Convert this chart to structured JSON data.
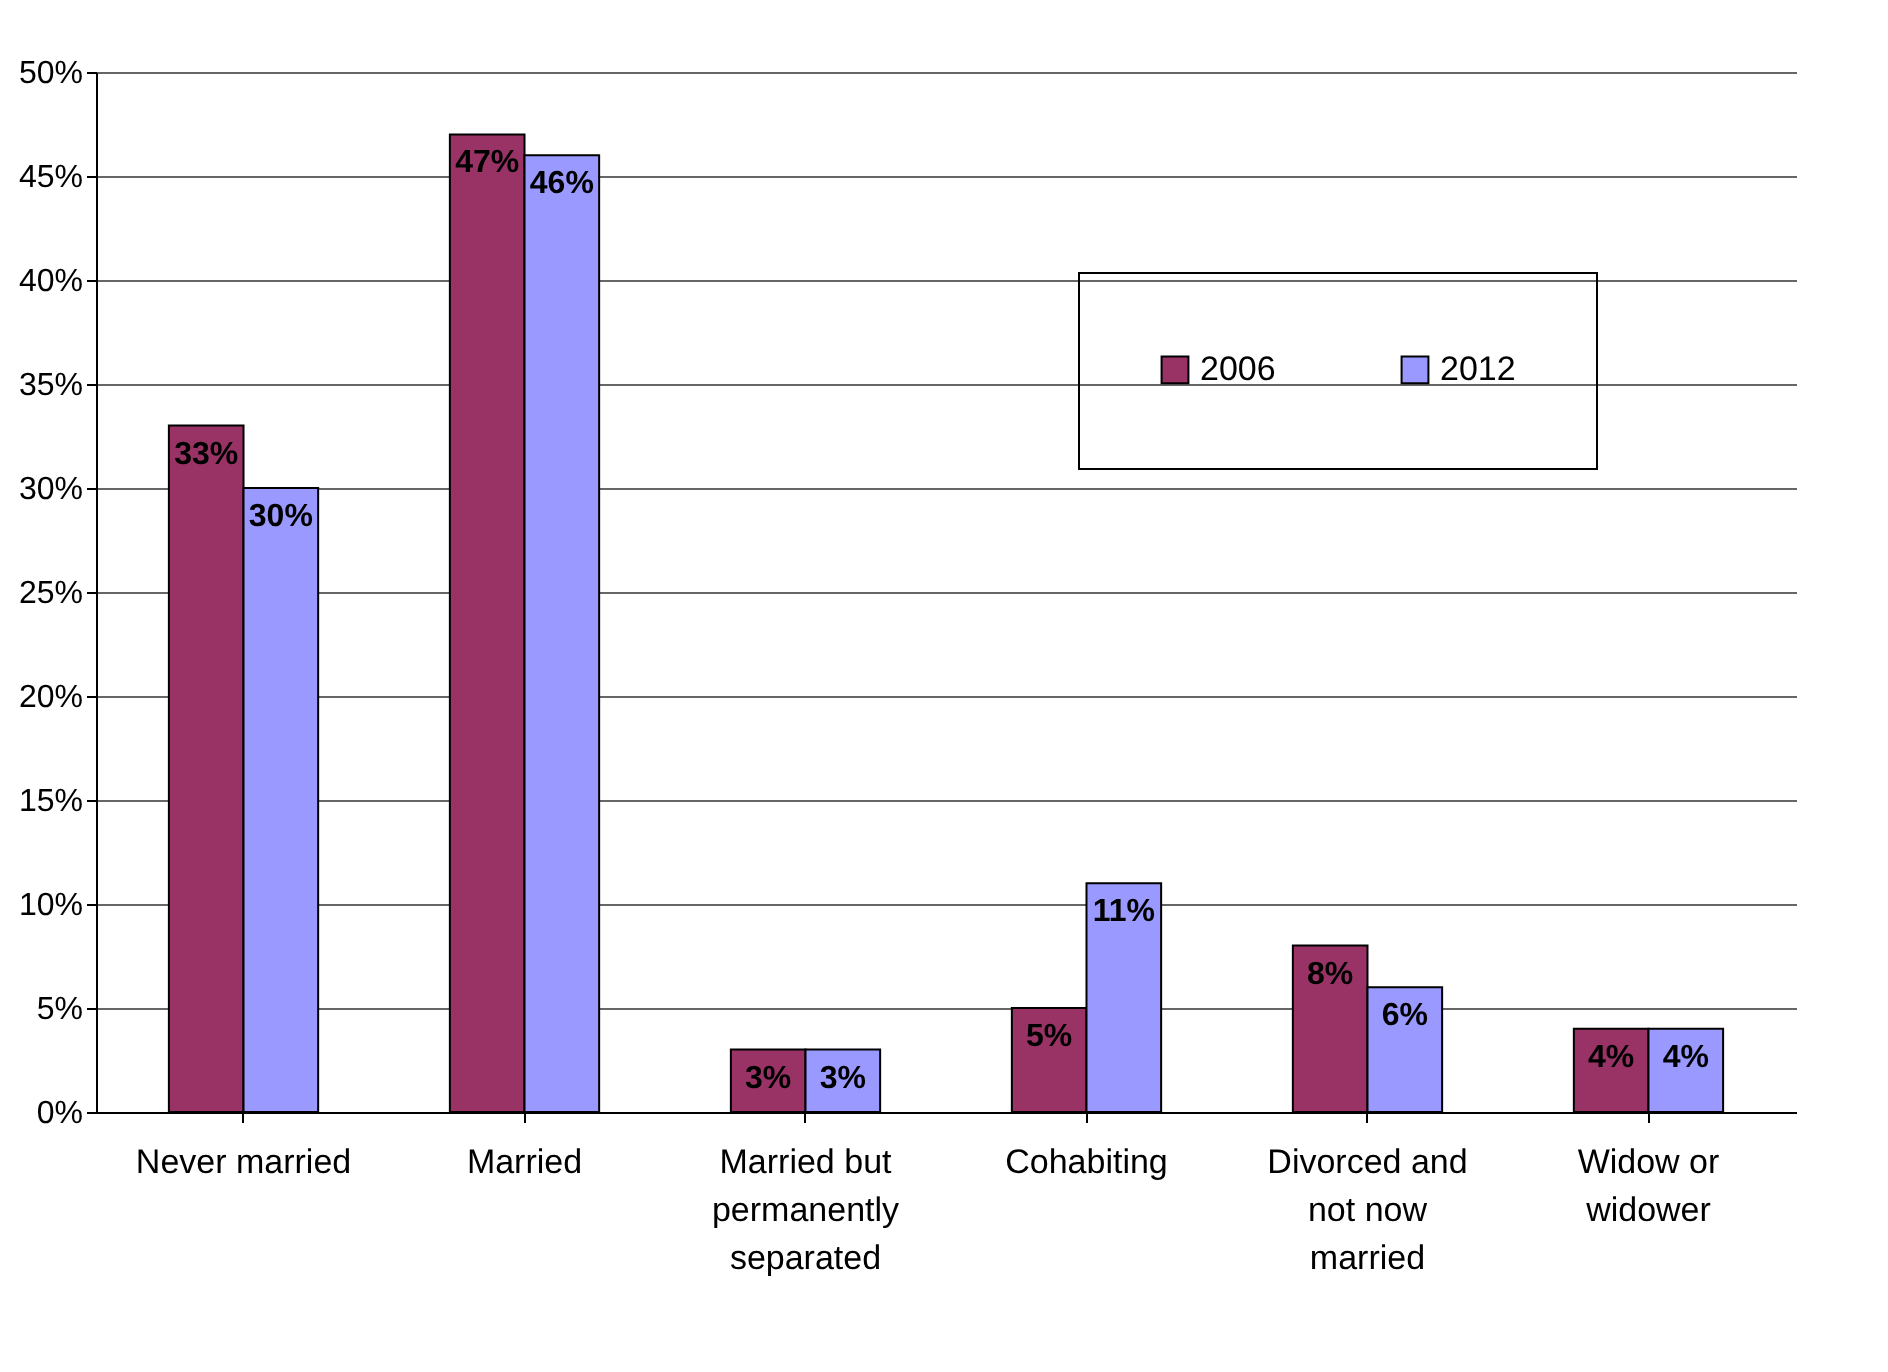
{
  "chart_data": {
    "type": "bar",
    "categories": [
      "Never married",
      "Married",
      "Married but permanently separated",
      "Cohabiting",
      "Divorced and not now married",
      "Widow or widower"
    ],
    "series": [
      {
        "name": "2006",
        "color": "#993366",
        "values": [
          33,
          47,
          3,
          5,
          8,
          4
        ],
        "value_labels": [
          "33%",
          "47%",
          "3%",
          "5%",
          "8%",
          "4%"
        ]
      },
      {
        "name": "2012",
        "color": "#9999ff",
        "values": [
          30,
          46,
          3,
          11,
          6,
          4
        ],
        "value_labels": [
          "30%",
          "46%",
          "3%",
          "11%",
          "6%",
          "4%"
        ]
      }
    ],
    "ylim": [
      0,
      50
    ],
    "yticks": [
      {
        "value": 0,
        "label": "0%"
      },
      {
        "value": 5,
        "label": "5%"
      },
      {
        "value": 10,
        "label": "10%"
      },
      {
        "value": 15,
        "label": "15%"
      },
      {
        "value": 20,
        "label": "20%"
      },
      {
        "value": 25,
        "label": "25%"
      },
      {
        "value": 30,
        "label": "30%"
      },
      {
        "value": 35,
        "label": "35%"
      },
      {
        "value": 40,
        "label": "40%"
      },
      {
        "value": 45,
        "label": "45%"
      },
      {
        "value": 50,
        "label": "50%"
      }
    ],
    "grid": "y",
    "legend": "top right"
  }
}
